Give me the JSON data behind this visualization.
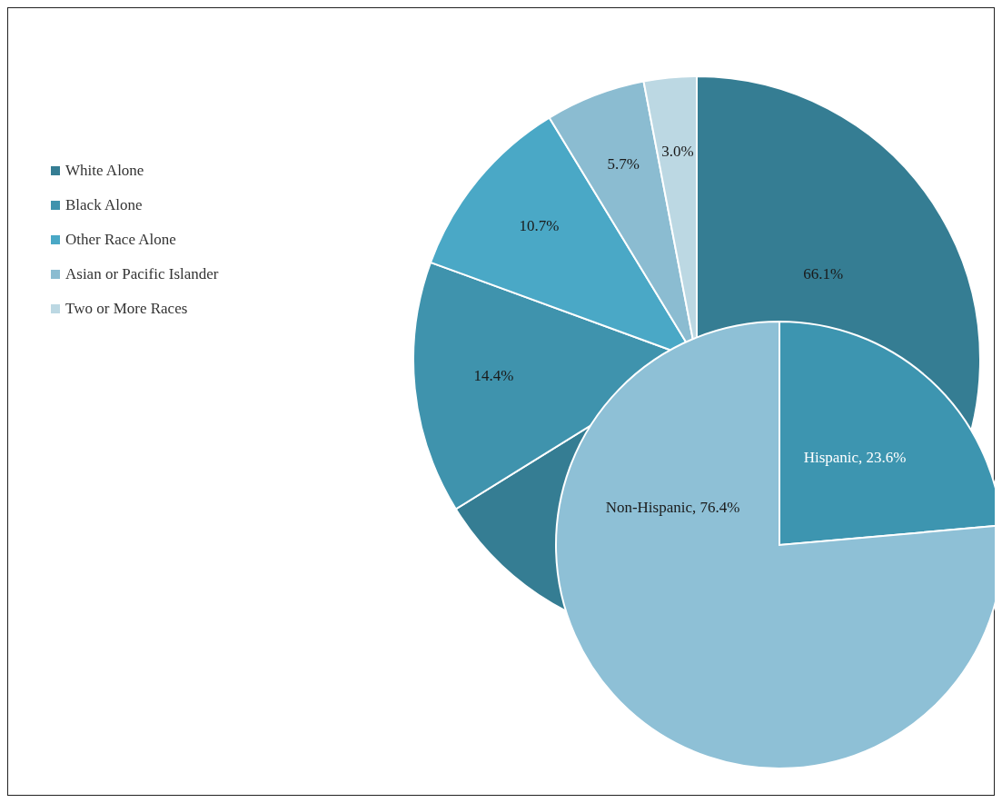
{
  "chart_data": [
    {
      "type": "pie",
      "categories": [
        "White Alone",
        "Black Alone",
        "Other Race Alone",
        "Asian or Pacific Islander",
        "Two or More Races"
      ],
      "values": [
        66.1,
        14.4,
        10.7,
        5.7,
        3.0
      ],
      "colors": [
        "#357d93",
        "#3f93ad",
        "#4aa8c6",
        "#8bbcd1",
        "#bcd8e3"
      ],
      "value_labels": [
        "66.1%",
        "14.4%",
        "10.7%",
        "5.7%",
        "3.0%"
      ],
      "legend": "left"
    },
    {
      "type": "pie",
      "categories": [
        "Hispanic",
        "Non-Hispanic"
      ],
      "values": [
        23.6,
        76.4
      ],
      "colors": [
        "#3d95b0",
        "#8ec0d6"
      ],
      "value_labels": [
        "23.6%",
        "76.4%"
      ],
      "legend": false
    }
  ]
}
